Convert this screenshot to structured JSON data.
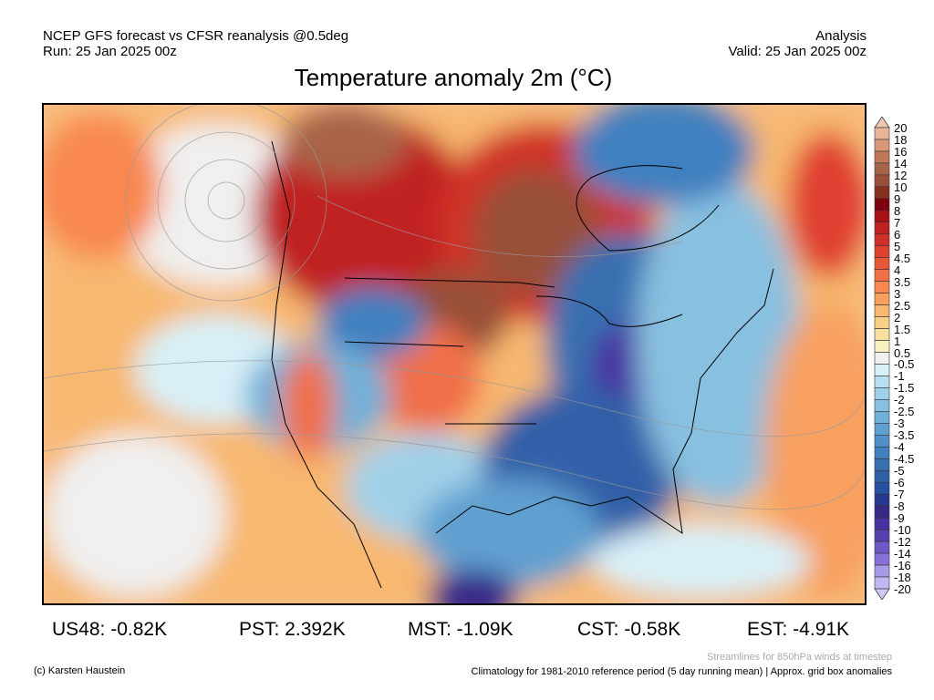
{
  "header": {
    "left_line1": "NCEP GFS forecast vs CFSR reanalysis @0.5deg",
    "left_line2": "Run: 25 Jan 2025 00z",
    "right_line1": "Analysis",
    "right_line2": "Valid: 25 Jan 2025 00z"
  },
  "title": "Temperature anomaly 2m (°C)",
  "colorbar": {
    "labels": [
      "20",
      "18",
      "16",
      "14",
      "12",
      "10",
      "9",
      "8",
      "7",
      "6",
      "5",
      "4.5",
      "4",
      "3.5",
      "3",
      "2.5",
      "2",
      "1.5",
      "1",
      "0.5",
      "-0.5",
      "-1",
      "-1.5",
      "-2",
      "-2.5",
      "-3",
      "-3.5",
      "-4",
      "-4.5",
      "-5",
      "-6",
      "-7",
      "-8",
      "-9",
      "-10",
      "-12",
      "-14",
      "-16",
      "-18",
      "-20"
    ],
    "colors": [
      "#e8b498",
      "#d89878",
      "#c07858",
      "#a86448",
      "#985038",
      "#883020",
      "#800010",
      "#a81018",
      "#c02020",
      "#d03028",
      "#e04030",
      "#e85838",
      "#f07048",
      "#f88850",
      "#f8a060",
      "#f8b870",
      "#f8d088",
      "#f8e0a0",
      "#f8f0c0",
      "#f0f0f0",
      "#d8f0f8",
      "#b8e0f0",
      "#a0d0e8",
      "#88c0e0",
      "#70b0d8",
      "#60a0d0",
      "#5090c8",
      "#4080c0",
      "#3870b0",
      "#3060a8",
      "#2850a0",
      "#283890",
      "#382888",
      "#4830a0",
      "#5840b0",
      "#7058c8",
      "#8870d8",
      "#a898e8",
      "#c0b8f0"
    ],
    "top_arrow": "#f0c8b0",
    "bottom_arrow": "#d0c8f8"
  },
  "stats": [
    {
      "label": "US48: -0.82K"
    },
    {
      "label": "PST: 2.392K"
    },
    {
      "label": "MST: -1.09K"
    },
    {
      "label": "CST: -0.58K"
    },
    {
      "label": "EST: -4.91K"
    }
  ],
  "footer": {
    "credit": "(c) Karsten Haustein",
    "streamlines": "Streamlines for 850hPa winds at timestep",
    "climatology": "Climatology for 1981-2010 reference period (5 day running mean) | Approx. grid box anomalies"
  }
}
